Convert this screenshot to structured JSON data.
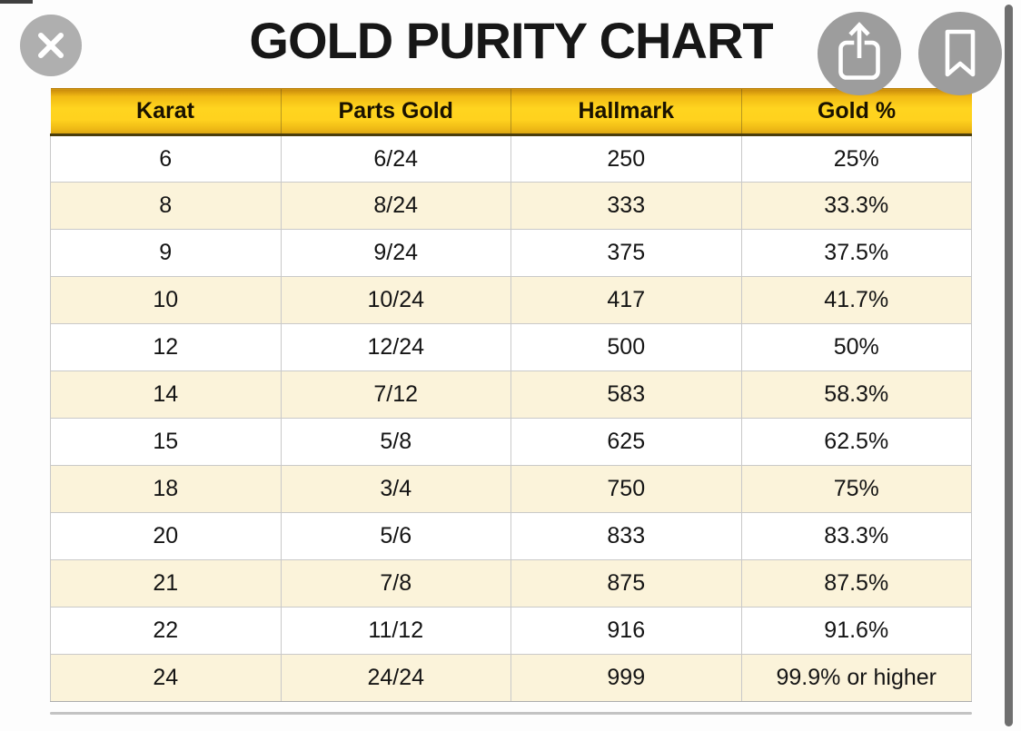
{
  "title": "GOLD PURITY CHART",
  "viewer": {
    "close_icon": "close-x",
    "share_icon": "share-up-arrow",
    "bookmark_icon": "bookmark-outline",
    "scrollbar": "vertical-scrollbar"
  },
  "colors": {
    "header_yellow": "#FFD21E",
    "header_yellow_dark": "#C8890C",
    "header_bottom_border": "#4A3D0B",
    "row_alternate": "#FBF3DA",
    "grid_line": "#C9C9C9",
    "button_circle": "#9D9D9D",
    "scrollbar": "#6F6F6F",
    "title_text": "#171717",
    "cell_text": "#141414"
  },
  "chart_data": {
    "type": "table",
    "title": "GOLD PURITY CHART",
    "columns": [
      "Karat",
      "Parts Gold",
      "Hallmark",
      "Gold %"
    ],
    "rows": [
      [
        "6",
        "6/24",
        "250",
        "25%"
      ],
      [
        "8",
        "8/24",
        "333",
        "33.3%"
      ],
      [
        "9",
        "9/24",
        "375",
        "37.5%"
      ],
      [
        "10",
        "10/24",
        "417",
        "41.7%"
      ],
      [
        "12",
        "12/24",
        "500",
        "50%"
      ],
      [
        "14",
        "7/12",
        "583",
        "58.3%"
      ],
      [
        "15",
        "5/8",
        "625",
        "62.5%"
      ],
      [
        "18",
        "3/4",
        "750",
        "75%"
      ],
      [
        "20",
        "5/6",
        "833",
        "83.3%"
      ],
      [
        "21",
        "7/8",
        "875",
        "87.5%"
      ],
      [
        "22",
        "11/12",
        "916",
        "91.6%"
      ],
      [
        "24",
        "24/24",
        "999",
        "99.9% or higher"
      ]
    ],
    "layout": {
      "header_background": "gold-gradient",
      "row_striping": "white / cream alternating",
      "grid": true
    }
  }
}
